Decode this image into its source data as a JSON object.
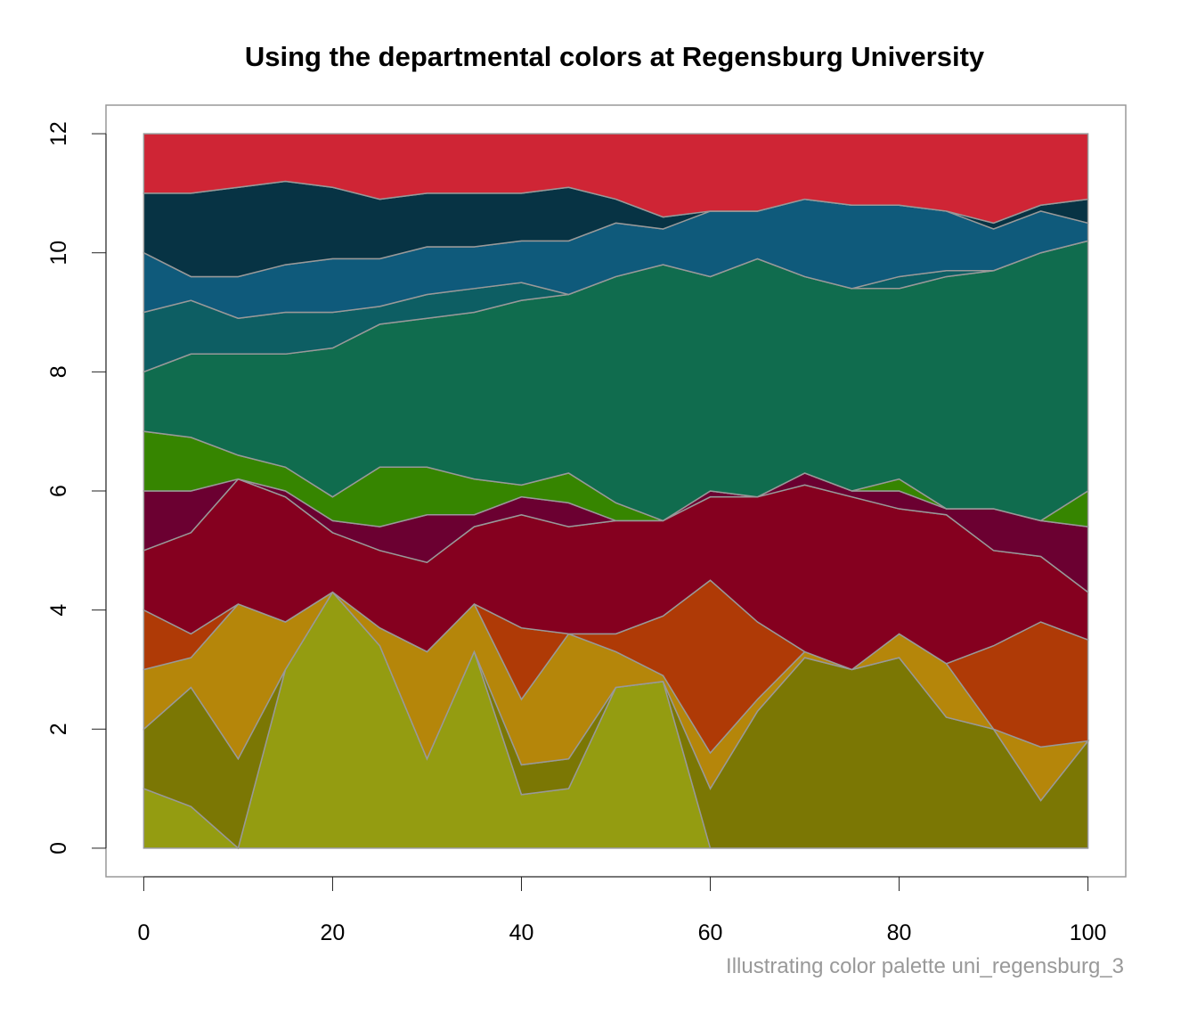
{
  "chart_data": {
    "type": "stacked-area",
    "title": "Using the departmental colors at Regensburg University",
    "caption": "Illustrating color palette uni_regensburg_3",
    "x": [
      0,
      5,
      10,
      15,
      20,
      25,
      30,
      35,
      40,
      45,
      50,
      55,
      60,
      65,
      70,
      75,
      80,
      85,
      90,
      95,
      100
    ],
    "xlim": [
      -4,
      104
    ],
    "ylim": [
      -0.48,
      12.48
    ],
    "xticks": [
      0,
      20,
      40,
      60,
      80,
      100
    ],
    "yticks": [
      0,
      2,
      4,
      6,
      8,
      10,
      12
    ],
    "series": [
      {
        "color": "#949c11",
        "values": [
          1.0,
          0.7,
          0,
          3.0,
          4.3,
          3.4,
          1.5,
          3.3,
          0.9,
          1.0,
          2.7,
          2.8,
          0,
          0,
          0,
          0,
          0,
          0,
          0,
          0,
          0
        ]
      },
      {
        "color": "#7b7704",
        "values": [
          1.0,
          2.0,
          1.5,
          0,
          0,
          0,
          0,
          0,
          0.5,
          0.5,
          0,
          0,
          1.0,
          2.3,
          3.2,
          3.0,
          3.2,
          2.2,
          2.0,
          0.8,
          1.8
        ]
      },
      {
        "color": "#b5860a",
        "values": [
          1.0,
          0.5,
          2.6,
          0.8,
          0,
          0.3,
          1.8,
          0.8,
          1.1,
          2.1,
          0.6,
          0.1,
          0.6,
          0.2,
          0.1,
          0,
          0.4,
          0.9,
          0,
          0.9,
          0
        ]
      },
      {
        "color": "#af3a06",
        "values": [
          1.0,
          0.4,
          0,
          0,
          0,
          0,
          0,
          0,
          1.2,
          0,
          0.3,
          1.0,
          2.9,
          1.3,
          0,
          0,
          0,
          0,
          1.4,
          2.1,
          1.7
        ]
      },
      {
        "color": "#85001f",
        "values": [
          1.0,
          1.7,
          2.1,
          2.1,
          1.0,
          1.3,
          1.5,
          1.3,
          1.9,
          1.8,
          1.9,
          1.6,
          1.4,
          2.1,
          2.8,
          2.9,
          2.1,
          2.5,
          1.6,
          1.1,
          0.8
        ]
      },
      {
        "color": "#6b0031",
        "values": [
          1.0,
          0.7,
          0,
          0.1,
          0.2,
          0.4,
          0.8,
          0.2,
          0.3,
          0.4,
          0,
          0,
          0.1,
          0,
          0.2,
          0.1,
          0.3,
          0.1,
          0.7,
          0.6,
          1.1
        ]
      },
      {
        "color": "#368500",
        "values": [
          1.0,
          0.9,
          0.4,
          0.4,
          0.4,
          1.0,
          0.8,
          0.6,
          0.2,
          0.5,
          0.3,
          0,
          0,
          0,
          0,
          0,
          0.2,
          0,
          0,
          0,
          0.6
        ]
      },
      {
        "color": "#106c4e",
        "values": [
          1.0,
          1.4,
          1.7,
          1.9,
          2.5,
          2.4,
          2.5,
          2.8,
          3.1,
          3.0,
          3.8,
          4.3,
          3.6,
          4.0,
          3.3,
          3.4,
          3.2,
          3.9,
          4.0,
          4.5,
          4.2
        ]
      },
      {
        "color": "#0d5e63",
        "values": [
          1.0,
          0.9,
          0.6,
          0.7,
          0.6,
          0.3,
          0.4,
          0.4,
          0.3,
          0,
          0,
          0,
          0,
          0,
          0,
          0,
          0.2,
          0.1,
          0,
          0,
          0
        ]
      },
      {
        "color": "#0f5a7b",
        "values": [
          1.0,
          0.4,
          0.7,
          0.8,
          0.9,
          0.8,
          0.8,
          0.7,
          0.7,
          0.9,
          0.9,
          0.6,
          1.1,
          0.8,
          1.3,
          1.4,
          1.2,
          1.0,
          0.7,
          0.7,
          0.3
        ]
      },
      {
        "color": "#073344",
        "values": [
          1.0,
          1.4,
          1.5,
          1.4,
          1.2,
          1.0,
          0.9,
          0.9,
          0.8,
          0.9,
          0.4,
          0.2,
          0,
          0,
          0,
          0,
          0,
          0,
          0.1,
          0.1,
          0.4
        ]
      },
      {
        "color": "#cf2535",
        "values": [
          1.0,
          1.0,
          0.9,
          0.8,
          0.9,
          1.1,
          1.0,
          1.0,
          1.0,
          0.9,
          1.1,
          1.4,
          1.3,
          1.3,
          1.1,
          1.2,
          1.2,
          1.3,
          1.5,
          1.2,
          1.1
        ]
      }
    ]
  }
}
